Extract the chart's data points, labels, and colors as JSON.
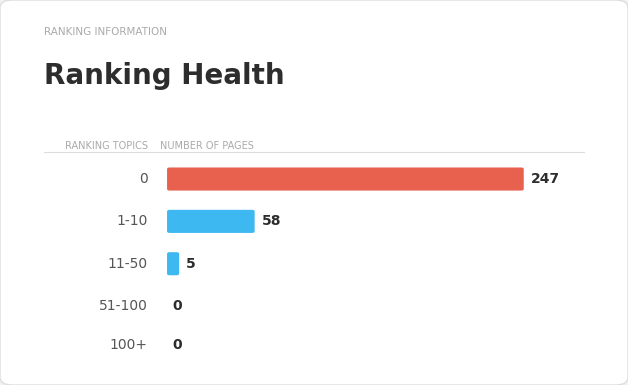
{
  "subtitle": "RANKING INFORMATION",
  "title": "Ranking Health",
  "col_header_left": "RANKING TOPICS",
  "col_header_right": "NUMBER OF PAGES",
  "categories": [
    "0",
    "1-10",
    "11-50",
    "51-100",
    "100+"
  ],
  "values": [
    247,
    58,
    5,
    0,
    0
  ],
  "max_value": 247,
  "bar_colors": [
    "#e8614e",
    "#3eb8f0",
    "#3eb8f0",
    "#3eb8f0",
    "#3eb8f0"
  ],
  "background_color": "#f2f2f2",
  "card_color": "#ffffff",
  "subtitle_color": "#aaaaaa",
  "title_color": "#2d2d2d",
  "header_color": "#aaaaaa",
  "label_color": "#555555",
  "value_color": "#2d2d2d",
  "figsize": [
    6.28,
    3.85
  ],
  "dpi": 100
}
